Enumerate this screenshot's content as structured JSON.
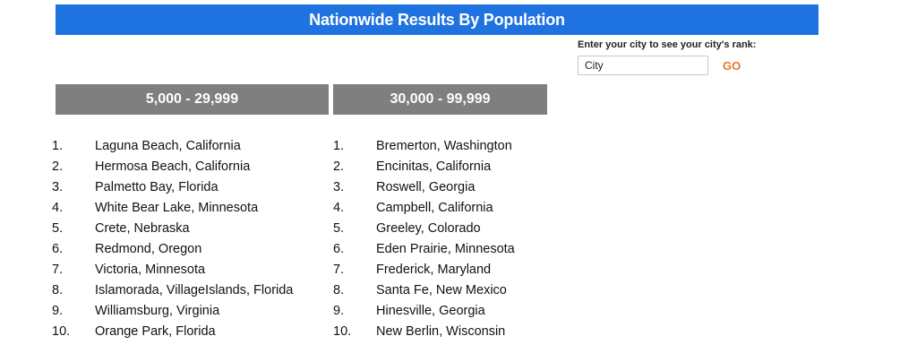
{
  "banner": {
    "title": "Nationwide Results By Population"
  },
  "rank_lookup": {
    "prompt": "Enter your city to see your city's rank:",
    "input_value": "City",
    "go_label": "GO"
  },
  "columns": [
    {
      "header": "5,000 - 29,999",
      "items": [
        {
          "rank": "1.",
          "city": "Laguna Beach, California"
        },
        {
          "rank": "2.",
          "city": "Hermosa Beach, California"
        },
        {
          "rank": "3.",
          "city": "Palmetto Bay, Florida"
        },
        {
          "rank": "4.",
          "city": "White Bear Lake, Minnesota"
        },
        {
          "rank": "5.",
          "city": "Crete, Nebraska"
        },
        {
          "rank": "6.",
          "city": "Redmond, Oregon"
        },
        {
          "rank": "7.",
          "city": "Victoria, Minnesota"
        },
        {
          "rank": "8.",
          "city": "Islamorada, VillageIslands, Florida"
        },
        {
          "rank": "9.",
          "city": "Williamsburg, Virginia"
        },
        {
          "rank": "10.",
          "city": "Orange Park, Florida"
        }
      ]
    },
    {
      "header": "30,000 - 99,999",
      "items": [
        {
          "rank": "1.",
          "city": "Bremerton, Washington"
        },
        {
          "rank": "2.",
          "city": "Encinitas, California"
        },
        {
          "rank": "3.",
          "city": "Roswell, Georgia"
        },
        {
          "rank": "4.",
          "city": "Campbell, California"
        },
        {
          "rank": "5.",
          "city": "Greeley, Colorado"
        },
        {
          "rank": "6.",
          "city": "Eden Prairie, Minnesota"
        },
        {
          "rank": "7.",
          "city": "Frederick, Maryland"
        },
        {
          "rank": "8.",
          "city": "Santa Fe, New Mexico"
        },
        {
          "rank": "9.",
          "city": "Hinesville, Georgia"
        },
        {
          "rank": "10.",
          "city": "New Berlin, Wisconsin"
        }
      ]
    }
  ]
}
